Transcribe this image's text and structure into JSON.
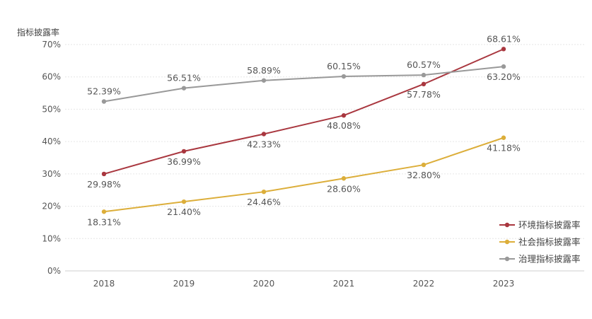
{
  "chart_data": {
    "type": "line",
    "title": "",
    "ylabel": "指标披露率",
    "xlabel": "",
    "categories": [
      "2018",
      "2019",
      "2020",
      "2021",
      "2022",
      "2023"
    ],
    "ylim": [
      0,
      70
    ],
    "yticks": [
      "0%",
      "10%",
      "20%",
      "30%",
      "40%",
      "50%",
      "60%",
      "70%"
    ],
    "grid": true,
    "legend_position": "bottom-right",
    "series": [
      {
        "name": "环境指标披露率",
        "color": "#a9373f",
        "values": [
          29.98,
          36.99,
          42.33,
          48.08,
          57.78,
          68.61
        ],
        "labels": [
          "29.98%",
          "36.99%",
          "42.33%",
          "48.08%",
          "57.78%",
          "68.61%"
        ],
        "label_sides": [
          "below",
          "below",
          "below",
          "below",
          "below",
          "above"
        ]
      },
      {
        "name": "社会指标披露率",
        "color": "#dcae3a",
        "values": [
          18.31,
          21.4,
          24.46,
          28.6,
          32.8,
          41.18
        ],
        "labels": [
          "18.31%",
          "21.40%",
          "24.46%",
          "28.60%",
          "32.80%",
          "41.18%"
        ],
        "label_sides": [
          "below",
          "below",
          "below",
          "below",
          "below",
          "below"
        ]
      },
      {
        "name": "治理指标披露率",
        "color": "#999999",
        "values": [
          52.39,
          56.51,
          58.89,
          60.15,
          60.57,
          63.2
        ],
        "labels": [
          "52.39%",
          "56.51%",
          "58.89%",
          "60.15%",
          "60.57%",
          "63.20%"
        ],
        "label_sides": [
          "above",
          "above",
          "above",
          "above",
          "above",
          "below"
        ]
      }
    ]
  }
}
